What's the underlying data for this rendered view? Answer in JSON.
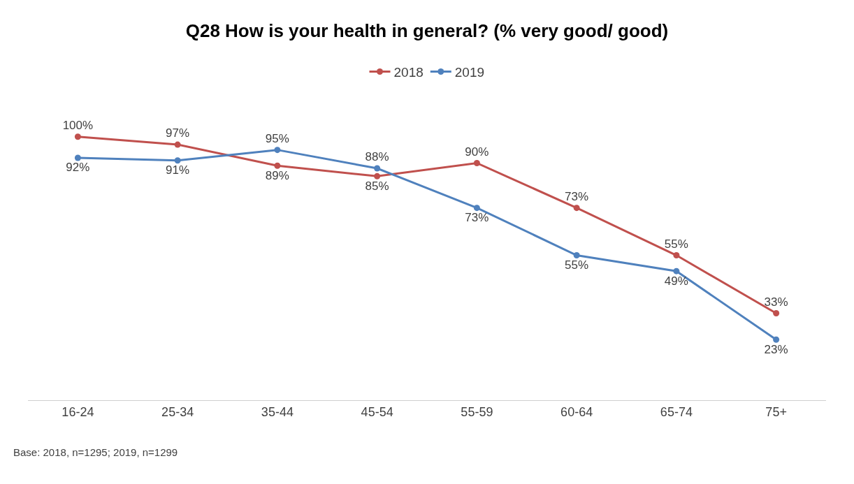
{
  "chart_data": {
    "type": "line",
    "title": "Q28 How is your health in general? (% very good/ good)",
    "categories": [
      "16-24",
      "25-34",
      "35-44",
      "45-54",
      "55-59",
      "60-64",
      "65-74",
      "75+"
    ],
    "series": [
      {
        "name": "2018",
        "color": "#c0504d",
        "values": [
          100,
          97,
          89,
          85,
          90,
          73,
          55,
          33
        ],
        "value_labels": [
          "100%",
          "97%",
          "89%",
          "85%",
          "90%",
          "73%",
          "55%",
          "33%"
        ]
      },
      {
        "name": "2019",
        "color": "#4f81bd",
        "values": [
          92,
          91,
          95,
          88,
          73,
          55,
          49,
          23
        ],
        "value_labels": [
          "92%",
          "91%",
          "95%",
          "88%",
          "73%",
          "55%",
          "49%",
          "23%"
        ]
      }
    ],
    "marker": "circle",
    "line_style": "solid",
    "legend": "top",
    "annotations": [
      "Base: 2018, n=1295; 2019, n=1299"
    ]
  }
}
